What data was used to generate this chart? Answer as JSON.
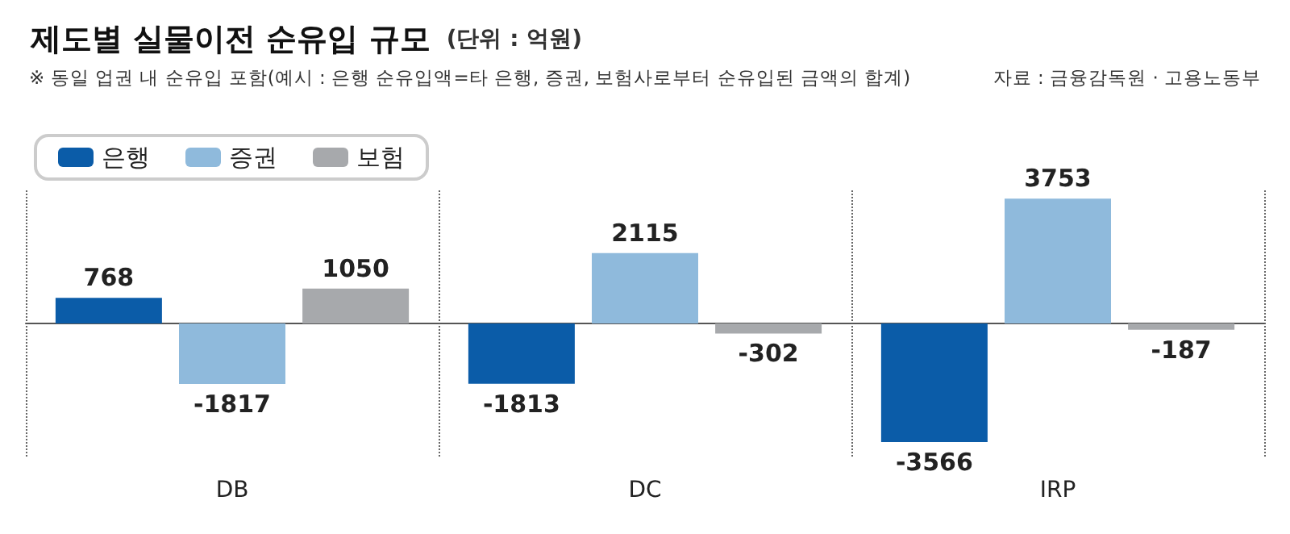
{
  "chart_data": {
    "type": "bar",
    "title": "제도별 실물이전 순유입 규모",
    "subtitle": "(단위 : 억원)",
    "annotations": [
      "※ 동일 업권 내 순유입 포함(예시 : 은행 순유입액=타 은행, 증권, 보험사로부터 순유입된 금액의 합계)",
      "자료 : 금융감독원 · 고용노동부"
    ],
    "categories": [
      "DB",
      "DC",
      "IRP"
    ],
    "series": [
      {
        "name": "은행",
        "color": "#0b5ca8",
        "values": [
          768,
          -1813,
          -3566
        ]
      },
      {
        "name": "증권",
        "color": "#8fbadc",
        "values": [
          -1817,
          2115,
          3753
        ]
      },
      {
        "name": "보험",
        "color": "#a7a9ac",
        "values": [
          1050,
          -302,
          -187
        ]
      }
    ],
    "data_labels": true,
    "legend": "top left",
    "grid": "x"
  }
}
